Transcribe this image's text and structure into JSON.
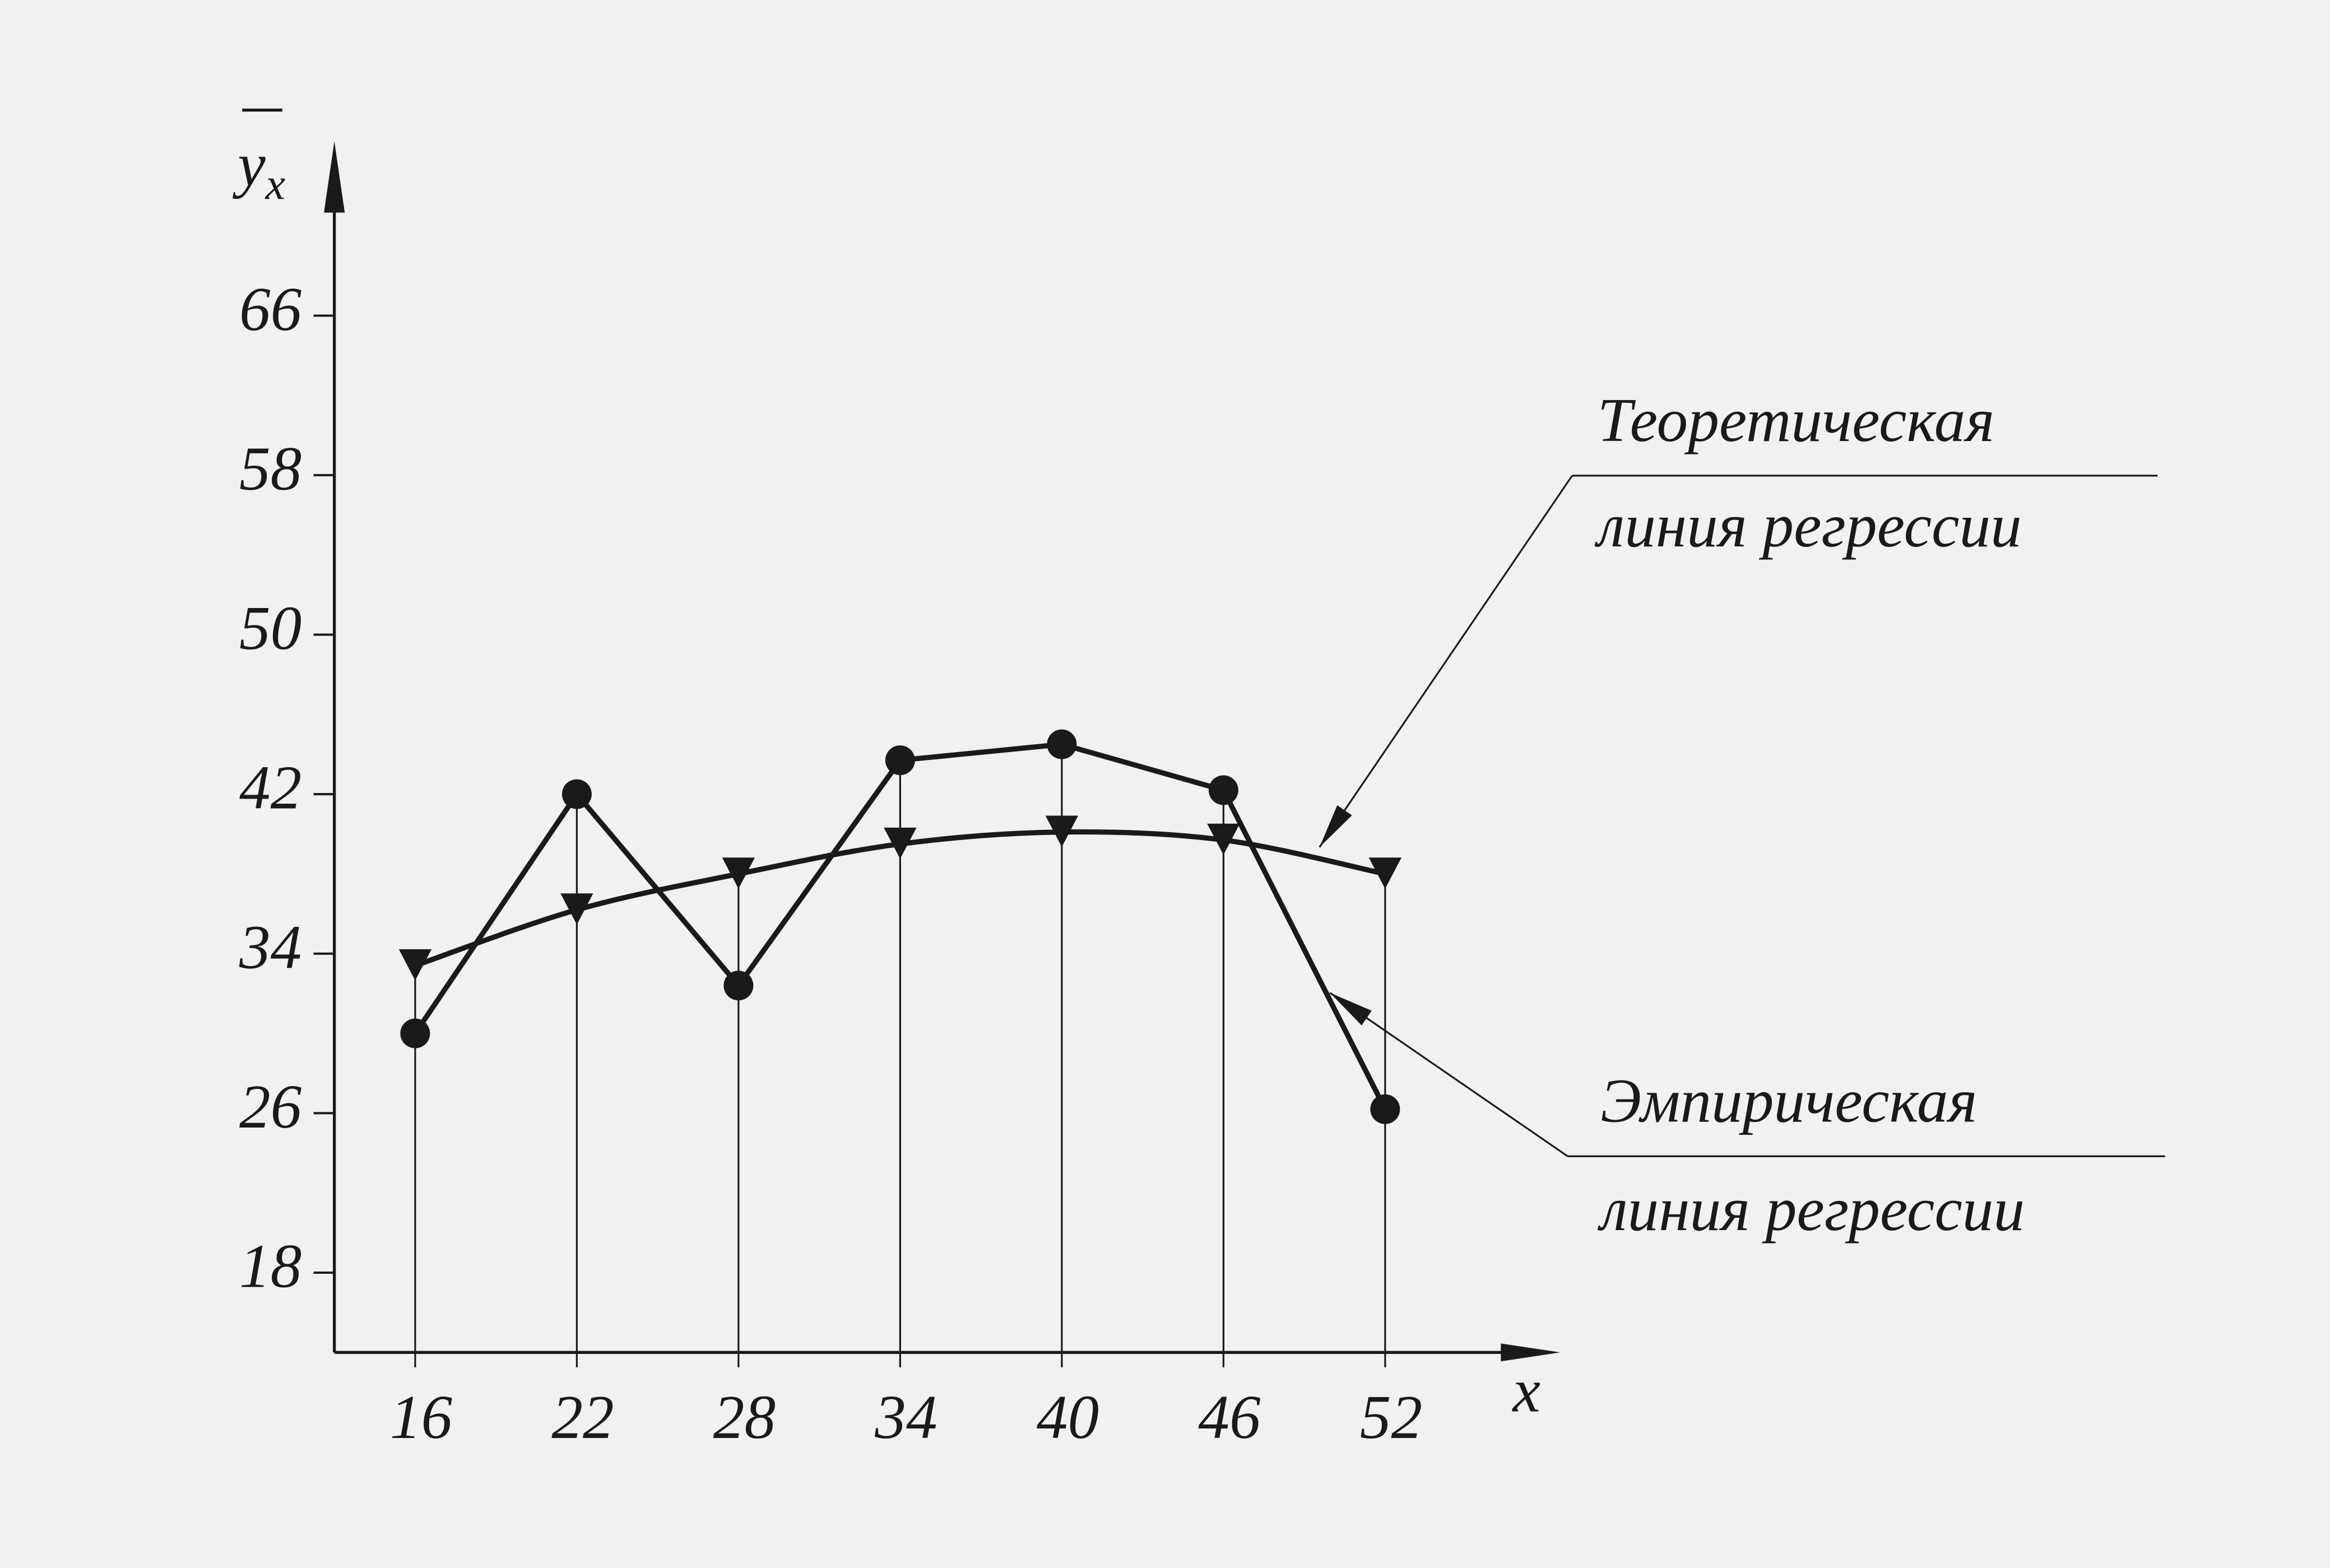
{
  "chart_data": {
    "type": "line",
    "ylabel": "y",
    "ylabel_subscript": "x",
    "xlabel": "x",
    "x": [
      16,
      22,
      28,
      34,
      40,
      46,
      52
    ],
    "series": [
      {
        "name": "Эмпирическая линия регрессии",
        "color": "#1a1a1a",
        "marker": "circle",
        "smooth": false,
        "values": [
          30.0,
          42.0,
          32.4,
          43.7,
          44.5,
          42.2,
          26.2
        ]
      },
      {
        "name": "Теоретическая линия регрессии",
        "color": "#1a1a1a",
        "marker": "triangle-down",
        "smooth": true,
        "values": [
          33.4,
          36.2,
          38.0,
          39.5,
          40.1,
          39.7,
          38.0
        ]
      }
    ],
    "annotations": [
      {
        "lines": [
          "Теоретическая",
          "линия регрессии"
        ],
        "series": 1
      },
      {
        "lines": [
          "Эмпирическая",
          "линия регрессии"
        ],
        "series": 0
      }
    ],
    "xlim": [
      13,
      58.5
    ],
    "ylim": [
      14,
      74
    ],
    "xticks": [
      16,
      22,
      28,
      34,
      40,
      46,
      52
    ],
    "yticks": [
      18,
      26,
      34,
      42,
      50,
      58,
      66
    ],
    "drop_lines": true,
    "grid": false
  }
}
